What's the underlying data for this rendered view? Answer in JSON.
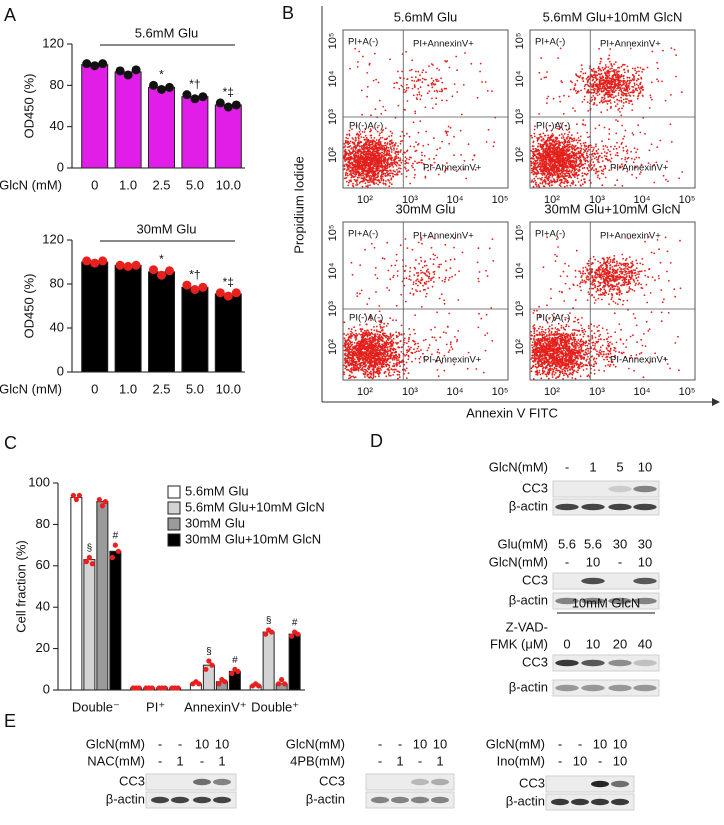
{
  "panel_labels": [
    "A",
    "B",
    "C",
    "D",
    "E"
  ],
  "chart_data": [
    {
      "type": "bar",
      "title": "5.6mM Glu",
      "y_label": "OD450 (%)",
      "x_label": "GlcN (mM)",
      "categories": [
        "0",
        "1.0",
        "2.5",
        "5.0",
        "10.0"
      ],
      "values": [
        100,
        93,
        78,
        69,
        61
      ],
      "points": [
        [
          101,
          99,
          101
        ],
        [
          94,
          90,
          95
        ],
        [
          80,
          76,
          78
        ],
        [
          71,
          67,
          69
        ],
        [
          63,
          59,
          61
        ]
      ],
      "color": "#e01ee8",
      "point_color": "#111111",
      "annotations": [
        {
          "category": "2.5",
          "text": "*"
        },
        {
          "category": "5.0",
          "text": "*†"
        },
        {
          "category": "10.0",
          "text": "*‡"
        }
      ],
      "ylim": [
        0,
        120
      ],
      "yticks": [
        0,
        40,
        80,
        120
      ]
    },
    {
      "type": "bar",
      "title": "30mM Glu",
      "y_label": "OD450 (%)",
      "x_label": "GlcN (mM)",
      "categories": [
        "0",
        "1.0",
        "2.5",
        "5.0",
        "10.0"
      ],
      "values": [
        100,
        97,
        91,
        77,
        71
      ],
      "points": [
        [
          101,
          99,
          101
        ],
        [
          97,
          96,
          97
        ],
        [
          93,
          88,
          92
        ],
        [
          79,
          75,
          77
        ],
        [
          72,
          69,
          72
        ]
      ],
      "color": "#000000",
      "point_color": "#e8201e",
      "annotations": [
        {
          "category": "2.5",
          "text": "*"
        },
        {
          "category": "5.0",
          "text": "*†"
        },
        {
          "category": "10.0",
          "text": "*‡"
        }
      ],
      "ylim": [
        0,
        120
      ],
      "yticks": [
        0,
        40,
        80,
        120
      ]
    },
    {
      "type": "bar",
      "y_label": "Cell fraction (%)",
      "categories": [
        "Double⁻",
        "PI⁺",
        "AnnexinV⁺",
        "Double⁺"
      ],
      "series": [
        {
          "name": "5.6mM Glu",
          "color": "#ffffff",
          "values": [
            93,
            1,
            3,
            2
          ],
          "points": [
            [
              94,
              92,
              94
            ],
            [
              1,
              1,
              1
            ],
            [
              3,
              4,
              3
            ],
            [
              2,
              3,
              2
            ]
          ],
          "annotations": []
        },
        {
          "name": "5.6mM Glu+10mM GlcN",
          "color": "#d3d3d3",
          "values": [
            63,
            1,
            12,
            28
          ],
          "points": [
            [
              62,
              64,
              61
            ],
            [
              1,
              1,
              1
            ],
            [
              10,
              14,
              12
            ],
            [
              27,
              29,
              28
            ]
          ],
          "annotations": [
            {
              "category": "Double⁻",
              "text": "§"
            },
            {
              "category": "AnnexinV⁺",
              "text": "§"
            },
            {
              "category": "Double⁺",
              "text": "§"
            }
          ]
        },
        {
          "name": "30mM Glu",
          "color": "#9a9a9a",
          "values": [
            91,
            1,
            4,
            3
          ],
          "points": [
            [
              92,
              89,
              91
            ],
            [
              1,
              1,
              1
            ],
            [
              3,
              5,
              4
            ],
            [
              3,
              5,
              3
            ]
          ],
          "annotations": []
        },
        {
          "name": "30mM Glu+10mM GlcN",
          "color": "#000000",
          "values": [
            67,
            1,
            9,
            27
          ],
          "points": [
            [
              64,
              70,
              67
            ],
            [
              1,
              1,
              1
            ],
            [
              8,
              10,
              9
            ],
            [
              26,
              28,
              27
            ]
          ],
          "annotations": [
            {
              "category": "Double⁻",
              "text": "#"
            },
            {
              "category": "AnnexinV⁺",
              "text": "#"
            },
            {
              "category": "Double⁺",
              "text": "#"
            }
          ]
        }
      ],
      "point_color": "#e8201e",
      "ylim": [
        0,
        100
      ],
      "yticks": [
        0,
        20,
        40,
        60,
        80,
        100
      ]
    }
  ],
  "flow": {
    "y_label": "Propidium Iodide",
    "x_label": "Annexin V FITC",
    "ticks": [
      "10²",
      "10³",
      "10⁴",
      "10⁵"
    ],
    "plots": [
      {
        "title": "5.6mM Glu",
        "quadrants": [
          "PI+A(-)",
          "PI+AnnexinV+",
          "PI(-)A(-)",
          "PI-AnnexinV+"
        ]
      },
      {
        "title": "5.6mM Glu+10mM GlcN",
        "quadrants": [
          "PI+A(-)",
          "PI+AnnexinV+",
          "PI(-)A(-)",
          "PI-AnnexinV+"
        ]
      },
      {
        "title": "30mM Glu",
        "quadrants": [
          "PI+A(-)",
          "PI+AnnexinV+",
          "PI(-)A(-)",
          "PI-AnnexinV+"
        ]
      },
      {
        "title": "30mM Glu+10mM GlcN",
        "quadrants": [
          "PI+A(-)",
          "PI+AnnexinV+",
          "PI(-)A(-)",
          "PI-AnnexinV+"
        ]
      }
    ]
  },
  "blots": {
    "D": [
      {
        "conditions": [
          {
            "label": [
              "GlcN(mM)"
            ],
            "values": [
              "-",
              "1",
              "5",
              "10"
            ]
          }
        ],
        "rows": [
          "CC3",
          "β-actin"
        ]
      },
      {
        "conditions": [
          {
            "label": [
              "Glu(mM)"
            ],
            "values": [
              "5.6",
              "5.6",
              "30",
              "30"
            ]
          },
          {
            "label": [
              "GlcN(mM)"
            ],
            "values": [
              "-",
              "10",
              "-",
              "10"
            ]
          }
        ],
        "rows": [
          "CC3",
          "β-actin"
        ]
      },
      {
        "header": "10mM GlcN",
        "conditions": [
          {
            "label": [
              "Z-VAD-",
              "FMK (μM)"
            ],
            "values": [
              "0",
              "10",
              "20",
              "40"
            ]
          }
        ],
        "rows": [
          "CC3",
          "β-actin"
        ]
      }
    ],
    "E": [
      {
        "conditions": [
          {
            "label": [
              "GlcN(mM)"
            ],
            "values": [
              "-",
              "-",
              "10",
              "10"
            ]
          },
          {
            "label": [
              "NAC(mM)"
            ],
            "values": [
              "-",
              "1",
              "-",
              "1"
            ]
          }
        ],
        "rows": [
          "CC3",
          "β-actin"
        ]
      },
      {
        "conditions": [
          {
            "label": [
              "GlcN(mM)"
            ],
            "values": [
              "-",
              "-",
              "10",
              "10"
            ]
          },
          {
            "label": [
              "4PB(mM)"
            ],
            "values": [
              "-",
              "1",
              "-",
              "1"
            ]
          }
        ],
        "rows": [
          "CC3",
          "β-actin"
        ]
      },
      {
        "conditions": [
          {
            "label": [
              "GlcN(mM)"
            ],
            "values": [
              "-",
              "-",
              "10",
              "10"
            ]
          },
          {
            "label": [
              "Ino(mM)"
            ],
            "values": [
              "-",
              "10",
              "-",
              "10"
            ]
          }
        ],
        "rows": [
          "CC3",
          "β-actin"
        ]
      }
    ]
  }
}
